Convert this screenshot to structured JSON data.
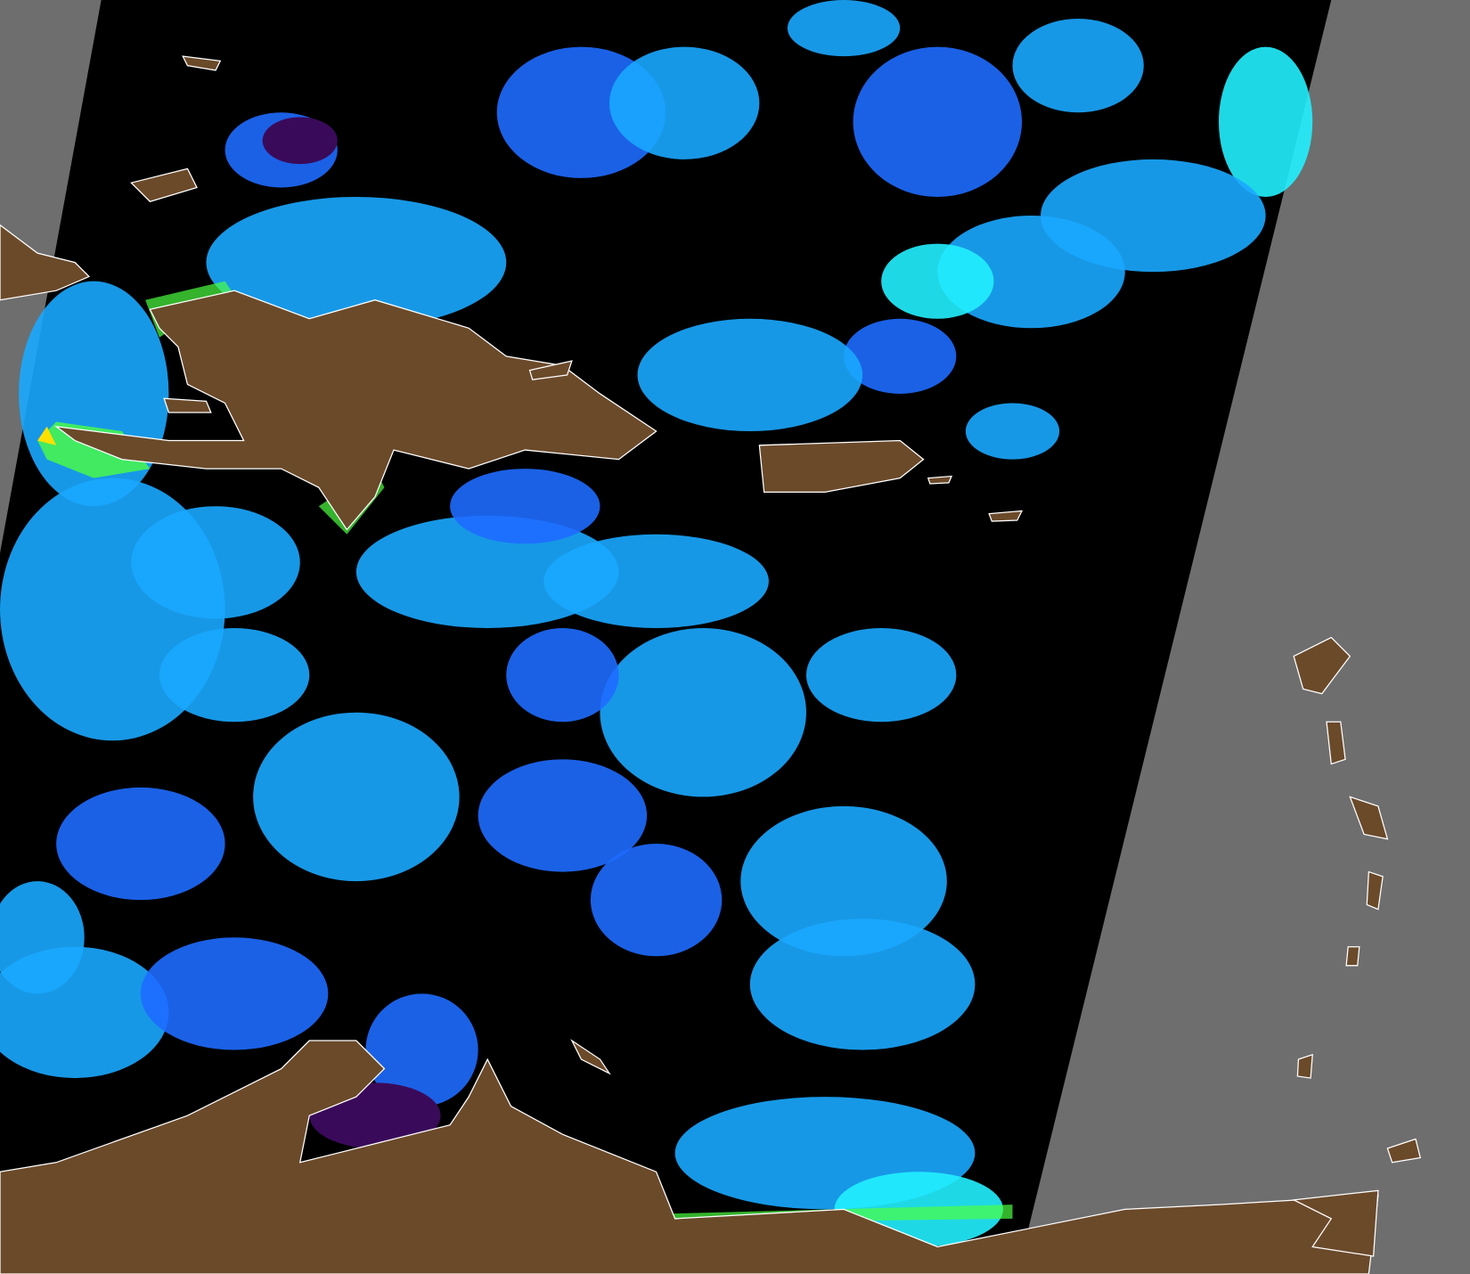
{
  "colors": {
    "outside_swath": "#6e6e6e",
    "no_data": "#000000",
    "land": "#6b4a2a",
    "coastline": "#ffffff",
    "low_value": "#3a0a5a",
    "mid_low": "#1e6cff",
    "mid": "#1aa8ff",
    "mid_high": "#22f0ff",
    "high": "#4cff40",
    "very_high": "#ffe000"
  }
}
